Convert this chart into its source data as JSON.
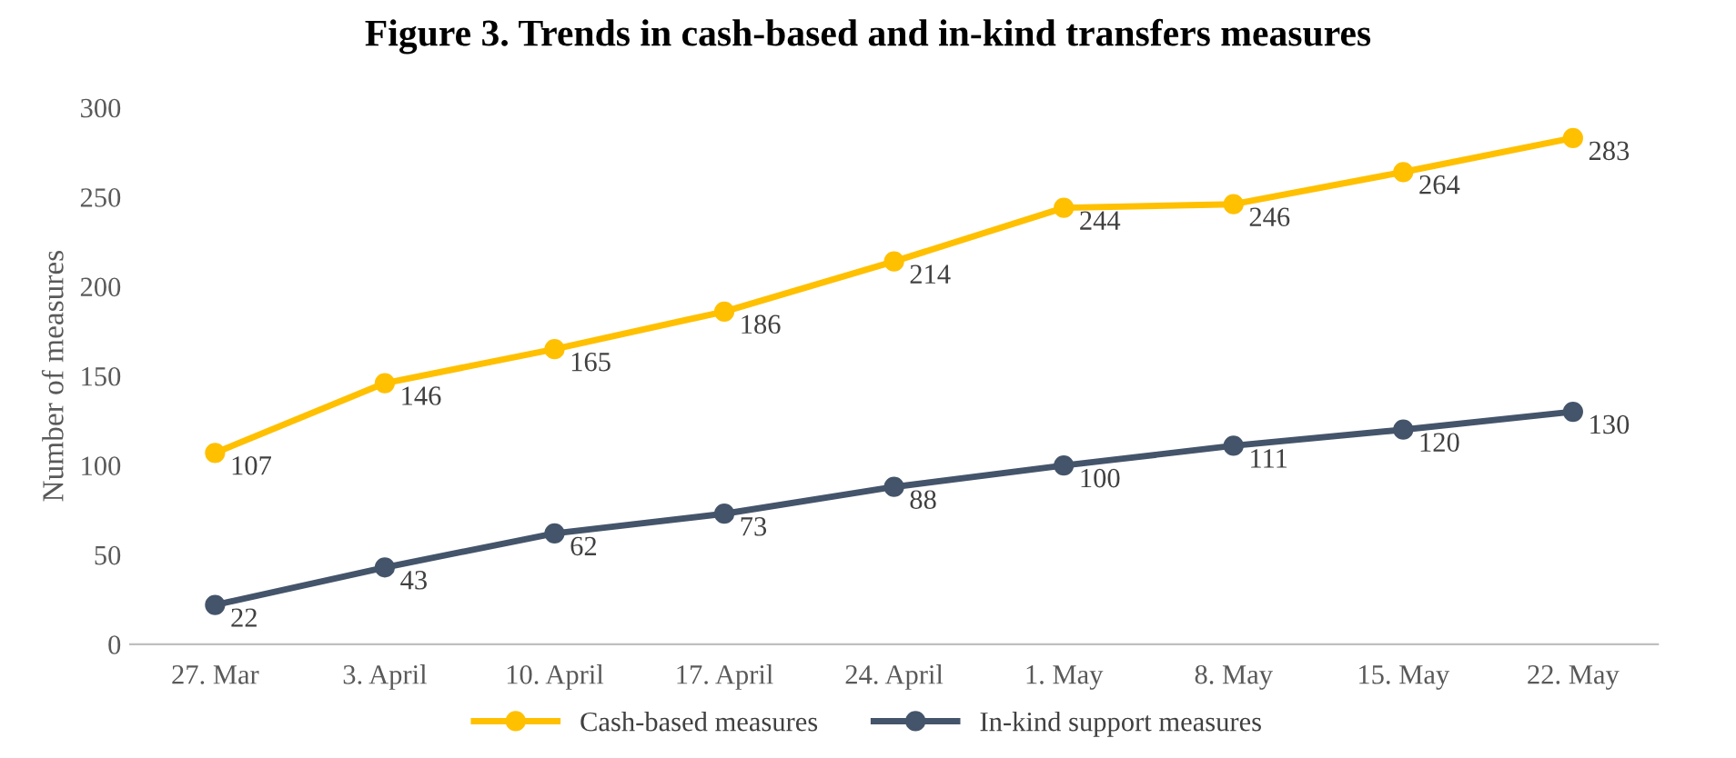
{
  "chart_data": {
    "type": "line",
    "title": "Figure 3. Trends in cash-based and in-kind transfers measures",
    "ylabel": "Number of measures",
    "categories": [
      "27. Mar",
      "3. April",
      "10. April",
      "17. April",
      "24. April",
      "1. May",
      "8. May",
      "15. May",
      "22. May"
    ],
    "series": [
      {
        "name": "Cash-based measures",
        "color": "#ffc000",
        "values": [
          107,
          146,
          165,
          186,
          214,
          244,
          246,
          264,
          283
        ]
      },
      {
        "name": "In-kind support measures",
        "color": "#44546a",
        "values": [
          22,
          43,
          62,
          73,
          88,
          100,
          111,
          120,
          130
        ]
      }
    ],
    "ylim": [
      0,
      300
    ],
    "yticks": [
      0,
      50,
      100,
      150,
      200,
      250,
      300
    ],
    "grid": false,
    "legend": "bottom",
    "marker": "circle",
    "line_style": "solid",
    "data_labels": true
  }
}
